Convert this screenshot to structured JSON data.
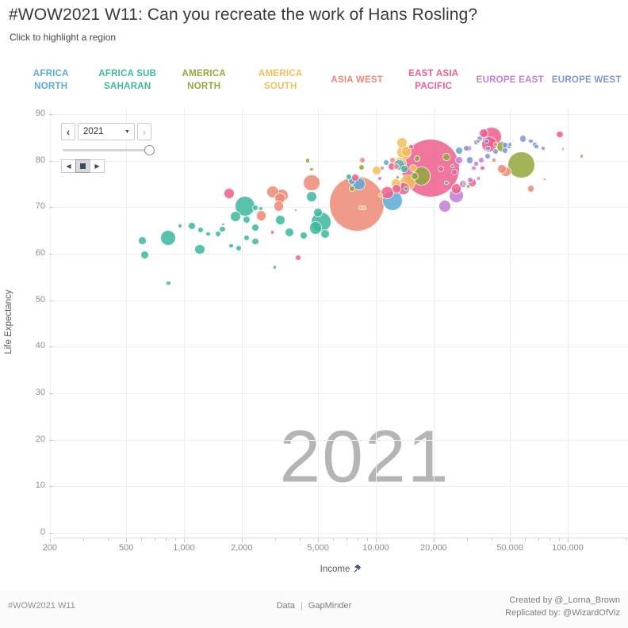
{
  "title": "#WOW2021 W11: Can you recreate the work of Hans Rosling?",
  "subtitle": "Click to highlight a region",
  "regions": [
    {
      "key": "africa_north",
      "line1": "AFRICA",
      "line2": "NORTH",
      "color": "#5aabd4"
    },
    {
      "key": "africa_sub_saharan",
      "line1": "AFRICA SUB",
      "line2": "SAHARAN",
      "color": "#3db89f"
    },
    {
      "key": "america_north",
      "line1": "AMERICA",
      "line2": "NORTH",
      "color": "#94a73c"
    },
    {
      "key": "america_south",
      "line1": "AMERICA",
      "line2": "SOUTH",
      "color": "#f2bf58"
    },
    {
      "key": "asia_west",
      "line1": "ASIA WEST",
      "line2": "",
      "color": "#ee8a75"
    },
    {
      "key": "east_asia_pacific",
      "line1": "EAST ASIA",
      "line2": "PACIFIC",
      "color": "#ef5f8d"
    },
    {
      "key": "europe_east",
      "line1": "EUROPE EAST",
      "line2": "",
      "color": "#c47dd4"
    },
    {
      "key": "europe_west",
      "line1": "EUROPE WEST",
      "line2": "",
      "color": "#7b96d9"
    }
  ],
  "year_control": {
    "year": "2021",
    "prev_label": "‹",
    "next_label": "›",
    "caret": "▼",
    "step_back": "◀",
    "play": "▶"
  },
  "watermark": "2021",
  "chart_data": {
    "type": "scatter",
    "x_axis": {
      "label": "Income",
      "scale": "log",
      "major_ticks": [
        {
          "value": 200,
          "label": "200"
        },
        {
          "value": 500,
          "label": "500"
        },
        {
          "value": 1000,
          "label": "1,000"
        },
        {
          "value": 2000,
          "label": "2,000"
        },
        {
          "value": 5000,
          "label": "5,000"
        },
        {
          "value": 10000,
          "label": "10,000"
        },
        {
          "value": 20000,
          "label": "20,000"
        },
        {
          "value": 50000,
          "label": "50,000"
        },
        {
          "value": 100000,
          "label": "100,000"
        }
      ],
      "minor_ticks": [
        300,
        400,
        600,
        700,
        800,
        900,
        3000,
        4000,
        6000,
        7000,
        8000,
        9000,
        30000,
        40000,
        60000,
        70000,
        80000,
        90000,
        200000,
        300000
      ]
    },
    "y_axis": {
      "label": "Life Expectancy",
      "min": 0,
      "max": 90,
      "tick_step": 10,
      "ticks": [
        0,
        10,
        20,
        30,
        40,
        50,
        60,
        70,
        80,
        90
      ]
    },
    "point_format": [
      "income",
      "life_expectancy",
      "bubble_radius_px"
    ],
    "series": [
      {
        "key": "africa_north",
        "name": "AFRICA NORTH",
        "color": "#5aabd4",
        "points": [
          [
            7551,
            75.7,
            5
          ],
          [
            8128,
            75,
            8.3
          ],
          [
            11298,
            79.6,
            4
          ],
          [
            12190,
            71.4,
            13.3
          ],
          [
            13243,
            79.1,
            7.3
          ],
          [
            27104,
            82.2,
            5
          ],
          [
            3837,
            69.4,
            2
          ]
        ]
      },
      {
        "key": "africa_sub_saharan",
        "name": "AFRICA SUB SAHARAN",
        "color": "#3db89f",
        "points": [
          [
            608,
            62.8,
            5.3
          ],
          [
            625,
            59.7,
            5.7
          ],
          [
            829,
            63.4,
            10
          ],
          [
            829,
            53.7,
            3.3
          ],
          [
            955,
            66,
            3
          ],
          [
            1099,
            66,
            4.7
          ],
          [
            1219,
            65.1,
            4
          ],
          [
            1208,
            60.9,
            6.7
          ],
          [
            1339,
            64.3,
            3.3
          ],
          [
            1499,
            64.3,
            4
          ],
          [
            1585,
            65.3,
            4.3
          ],
          [
            1858,
            68,
            7.3
          ],
          [
            2080,
            70.2,
            13
          ],
          [
            2123,
            67.3,
            5
          ],
          [
            2352,
            69.9,
            4
          ],
          [
            2512,
            69.7,
            3
          ],
          [
            2352,
            65.6,
            5
          ],
          [
            2123,
            63.4,
            4
          ],
          [
            2352,
            62.6,
            4.7
          ],
          [
            1932,
            61.2,
            4
          ],
          [
            1758,
            61.7,
            3.3
          ],
          [
            2973,
            57.1,
            2.7
          ],
          [
            3177,
            67.3,
            6.7
          ],
          [
            3556,
            64.6,
            6
          ],
          [
            4207,
            63.9,
            5
          ],
          [
            4624,
            72.3,
            7.3
          ],
          [
            4853,
            65.5,
            8.3
          ],
          [
            5176,
            66.8,
            13
          ],
          [
            5433,
            64.3,
            6
          ],
          [
            4989,
            68.9,
            6
          ],
          [
            7266,
            76.5,
            4
          ],
          [
            14028,
            78.2,
            5
          ],
          [
            14289,
            74,
            3
          ],
          [
            23281,
            75.3,
            2.7
          ],
          [
            25119,
            78.8,
            2.7
          ]
        ]
      },
      {
        "key": "america_north",
        "name": "AMERICA NORTH",
        "color": "#94a73c",
        "points": [
          [
            1600,
            66.3,
            2.3
          ],
          [
            4416,
            80,
            3.3
          ],
          [
            4624,
            78.2,
            2.7
          ],
          [
            7551,
            74,
            4
          ],
          [
            8452,
            78.6,
            4
          ],
          [
            13002,
            76.5,
            2.3
          ],
          [
            16000,
            76.7,
            5
          ],
          [
            16444,
            80.5,
            4
          ],
          [
            17258,
            76.7,
            11.7
          ],
          [
            23281,
            80.8,
            4.7
          ],
          [
            45394,
            83,
            7.3
          ],
          [
            57412,
            79.1,
            17.3
          ],
          [
            28907,
            75,
            2.3
          ],
          [
            30339,
            74.5,
            2.7
          ]
        ]
      },
      {
        "key": "america_south",
        "name": "AMERICA SOUTH",
        "color": "#f2bf58",
        "points": [
          [
            10093,
            77.9,
            6
          ],
          [
            13397,
            79.3,
            8.3
          ],
          [
            14028,
            81.8,
            9.3
          ],
          [
            14689,
            75.3,
            10
          ],
          [
            15704,
            78.4,
            5
          ],
          [
            8690,
            69.9,
            2.7
          ],
          [
            10568,
            72.6,
            3.3
          ],
          [
            8356,
            69.9,
            2.7
          ],
          [
            12764,
            75,
            6.7
          ],
          [
            13646,
            83.9,
            7
          ],
          [
            14421,
            82,
            6.7
          ]
        ]
      },
      {
        "key": "asia_west",
        "name": "ASIA WEST",
        "color": "#ee8a75",
        "points": [
          [
            2535,
            68.2,
            6.7
          ],
          [
            2891,
            73.3,
            8
          ],
          [
            3177,
            71.9,
            7
          ],
          [
            3119,
            70.2,
            6.7
          ],
          [
            3236,
            72.5,
            8.3
          ],
          [
            4624,
            75.3,
            10.7
          ],
          [
            7980,
            70.7,
            35
          ],
          [
            8531,
            80.1,
            4
          ],
          [
            10789,
            78.4,
            3.3
          ],
          [
            12190,
            80.1,
            4
          ],
          [
            12764,
            78.8,
            4
          ],
          [
            34277,
            84.2,
            3
          ],
          [
            41305,
            80.1,
            2.7
          ],
          [
            42073,
            83.5,
            2.7
          ],
          [
            45394,
            78.2,
            6
          ],
          [
            47643,
            77.6,
            6.7
          ],
          [
            64269,
            74,
            4.7
          ],
          [
            118304,
            81,
            2.7
          ]
        ]
      },
      {
        "key": "east_asia_pacific",
        "name": "EAST ASIA PACIFIC",
        "color": "#ef5f8d",
        "points": [
          [
            1726,
            73,
            7
          ],
          [
            3945,
            59.2,
            4
          ],
          [
            2891,
            64.6,
            2.7
          ],
          [
            19320,
            78.4,
            37
          ],
          [
            7834,
            76.4,
            5
          ],
          [
            11508,
            73.1,
            8.3
          ],
          [
            12078,
            78.8,
            5
          ],
          [
            12764,
            74,
            6
          ],
          [
            13900,
            74,
            8.3
          ],
          [
            15276,
            83,
            3.3
          ],
          [
            21827,
            78.2,
            4
          ],
          [
            25586,
            77.6,
            4
          ],
          [
            26303,
            74,
            6.7
          ],
          [
            30339,
            82.7,
            4
          ],
          [
            31773,
            75.3,
            5.3
          ],
          [
            35892,
            78.4,
            3.3
          ],
          [
            36559,
            85.9,
            6
          ],
          [
            39083,
            83.5,
            10
          ],
          [
            40179,
            85.1,
            12.7
          ],
          [
            91011,
            85.7,
            4.7
          ],
          [
            76208,
            76,
            2
          ]
        ]
      },
      {
        "key": "europe_east",
        "name": "EUROPE EAST",
        "color": "#c47dd4",
        "points": [
          [
            10471,
            76.2,
            2.7
          ],
          [
            26303,
            72.5,
            9.3
          ],
          [
            27104,
            80.1,
            5
          ],
          [
            28379,
            75,
            5
          ],
          [
            30903,
            75.9,
            4
          ],
          [
            32359,
            78.4,
            3.3
          ],
          [
            33266,
            79.3,
            3.3
          ],
          [
            34277,
            76.2,
            2.7
          ],
          [
            35563,
            80.1,
            4
          ],
          [
            22900,
            70.2,
            8
          ]
        ]
      },
      {
        "key": "europe_west",
        "name": "EUROPE WEST",
        "color": "#7b96d9",
        "points": [
          [
            29717,
            82.7,
            4
          ],
          [
            30903,
            80.1,
            4.7
          ],
          [
            33266,
            83.9,
            3.3
          ],
          [
            34914,
            84.7,
            4
          ],
          [
            37670,
            84.2,
            3.3
          ],
          [
            38371,
            82.7,
            3.3
          ],
          [
            38371,
            81,
            4
          ],
          [
            42073,
            82,
            4
          ],
          [
            47098,
            82.2,
            4
          ],
          [
            47098,
            83.4,
            4
          ],
          [
            49431,
            83,
            3.3
          ],
          [
            49888,
            83.5,
            3.3
          ],
          [
            58479,
            84.7,
            4.7
          ],
          [
            64269,
            84.2,
            3.3
          ],
          [
            67453,
            83.4,
            3.3
          ],
          [
            68707,
            83,
            3.3
          ],
          [
            74645,
            82.7,
            3
          ],
          [
            94624,
            82.5,
            2.3
          ]
        ]
      }
    ]
  },
  "footer": {
    "left": "#WOW2021 W11",
    "center_label": "Data",
    "center_value": "GapMinder",
    "right_line1": "Created by @_Lorna_Brown",
    "right_line2": "Replicated by: @WizardOfViz"
  }
}
